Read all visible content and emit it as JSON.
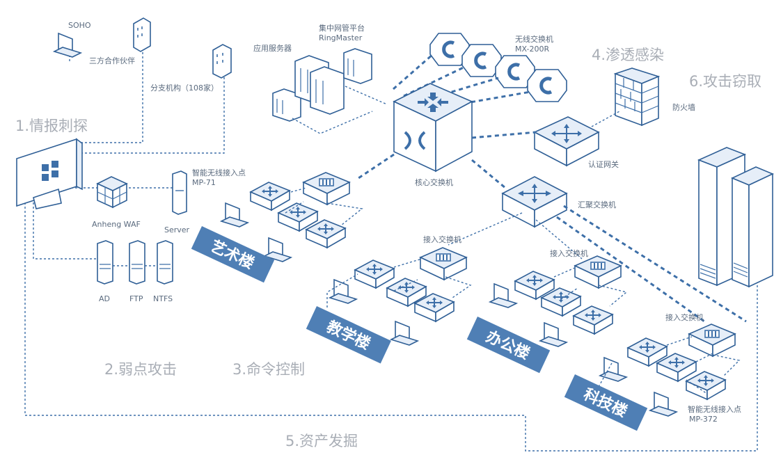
{
  "stages": {
    "s1": "1.情报刺探",
    "s2": "2.弱点攻击",
    "s3": "3.命令控制",
    "s4": "4.渗透感染",
    "s5": "5.资产发掘",
    "s6": "6.攻击窃取"
  },
  "labels": {
    "soho": "SOHO",
    "partner": "三方合作伙伴",
    "branch": "分支机构（108家）",
    "app_server": "应用服务器",
    "nms_line1": "集中网管平台",
    "nms_line2": "RingMaster",
    "wlc_line1": "无线交换机",
    "wlc_line2": "MX-200R",
    "firewall": "防火墙",
    "auth_gw": "认证网关",
    "core": "核心交换机",
    "agg": "汇聚交换机",
    "ap1_line1": "智能无线接入点",
    "ap1_line2": "MP-71",
    "waf": "Anheng WAF",
    "server": "Server",
    "ad": "AD",
    "ftp": "FTP",
    "ntfs": "NTFS",
    "access1": "接入交换机",
    "access2": "接入交换机",
    "access3": "接入交换机",
    "ap2_line1": "智能无线接入点",
    "ap2_line2": "MP-372"
  },
  "buildings": {
    "art": "艺术楼",
    "teach": "教学楼",
    "office": "办公楼",
    "tech": "科技楼"
  },
  "colors": {
    "line": "#3d6fa8",
    "ribbon": "#4f7fb5",
    "stage_text": "#a9aeb6"
  }
}
